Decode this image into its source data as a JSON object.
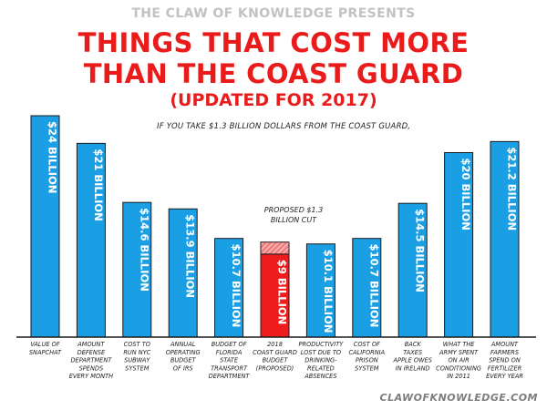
{
  "header": {
    "presents": "THE CLAW OF KNOWLEDGE PRESENTS",
    "title_line1": "THINGS THAT COST MORE",
    "title_line2": "THAN THE COAST GUARD",
    "subtitle": "(UPDATED FOR 2017)"
  },
  "annotation": "IF YOU TAKE $1.3 BILLION DOLLARS FROM THE COAST GUARD,",
  "cut_note_lines": [
    "PROPOSED $1.3",
    "BILLION CUT"
  ],
  "footer": "CLAWOFKNOWLEDGE.COM",
  "colors": {
    "bar": "#1a9fe5",
    "highlight": "#ee1c1c",
    "cut": "#f08080",
    "title": "#ea1b1b"
  },
  "chart_data": {
    "type": "bar",
    "unit": "billion USD",
    "ylim": [
      0,
      24
    ],
    "grid": false,
    "highlight_index": 5,
    "proposed_cut": 1.3,
    "categories": [
      [
        "VALUE OF",
        "SNAPCHAT"
      ],
      [
        "AMOUNT",
        "DEFENSE",
        "DEPARTMENT",
        "SPENDS",
        "EVERY MONTH"
      ],
      [
        "COST TO",
        "RUN NYC",
        "SUBWAY",
        "SYSTEM"
      ],
      [
        "ANNUAL",
        "OPERATING",
        "BUDGET",
        "OF IRS"
      ],
      [
        "BUDGET OF",
        "FLORIDA",
        "STATE",
        "TRANSPORT",
        "DEPARTMENT"
      ],
      [
        "2018",
        "COAST GUARD",
        "BUDGET",
        "(PROPOSED)"
      ],
      [
        "PRODUCTIVITY",
        "LOST DUE TO",
        "DRINKING-",
        "RELATED",
        "ABSENCES"
      ],
      [
        "COST OF",
        "CALIFORNIA",
        "PRISON",
        "SYSTEM"
      ],
      [
        "BACK",
        "TAXES",
        "APPLE OWES",
        "IN IRELAND"
      ],
      [
        "WHAT THE",
        "ARMY SPENT",
        "ON AIR",
        "CONDITIONING",
        "IN 2011"
      ],
      [
        "AMOUNT",
        "FARMERS",
        "SPEND ON",
        "FERTILIZER",
        "EVERY YEAR"
      ]
    ],
    "values": [
      24,
      21,
      14.6,
      13.9,
      10.7,
      9,
      10.1,
      10.7,
      14.5,
      20,
      21.2
    ],
    "labels": [
      "$24 BILLION",
      "$21 BILLION",
      "$14.6 BILLION",
      "$13.9 BILLION",
      "$10.7 BILLION",
      "$9 BILLION",
      "$10.1 BILLION",
      "$10.7 BILLION",
      "$14.5 BILLION",
      "$20 BILLION",
      "$21.2 BILLION"
    ]
  }
}
